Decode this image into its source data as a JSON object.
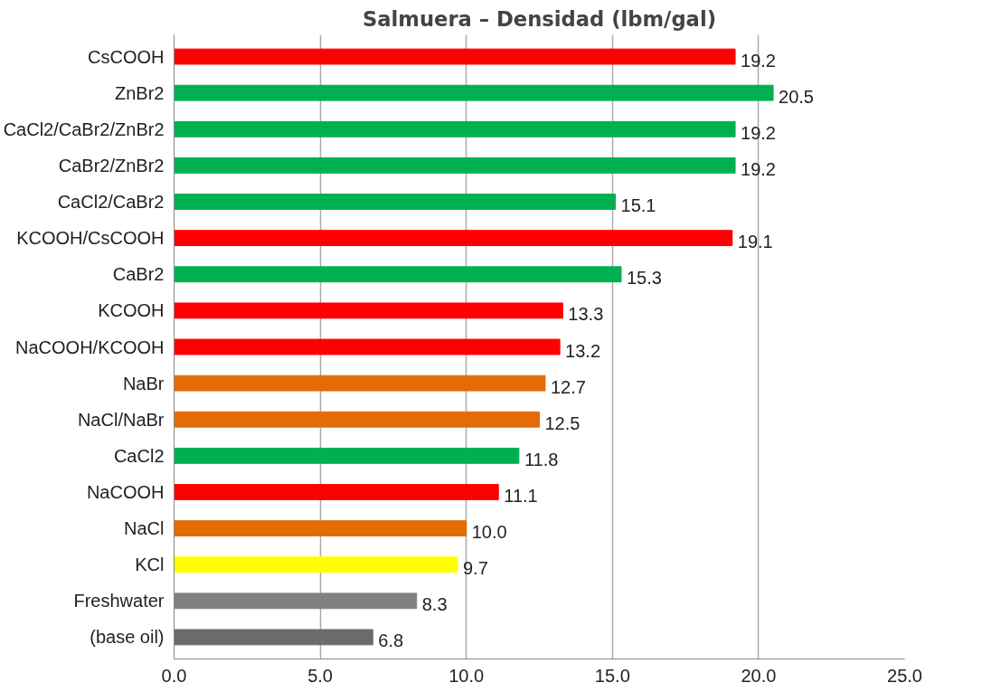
{
  "chart_data": {
    "type": "bar",
    "orientation": "horizontal",
    "title": "Salmuera – Densidad (lbm/gal)",
    "categories": [
      "CsCOOH",
      "ZnBr2",
      "CaCl2/CaBr2/ZnBr2",
      "CaBr2/ZnBr2",
      "CaCl2/CaBr2",
      "KCOOH/CsCOOH",
      "CaBr2",
      "KCOOH",
      "NaCOOH/KCOOH",
      "NaBr",
      "NaCl/NaBr",
      "CaCl2",
      "NaCOOH",
      "NaCl",
      "KCl",
      "Freshwater",
      "(base oil)"
    ],
    "values": [
      19.2,
      20.5,
      19.2,
      19.2,
      15.1,
      19.1,
      15.3,
      13.3,
      13.2,
      12.7,
      12.5,
      11.8,
      11.1,
      10.0,
      9.7,
      8.3,
      6.8
    ],
    "value_labels": [
      "19.2",
      "20.5",
      "19.2",
      "19.2",
      "15.1",
      "19.1",
      "15.3",
      "13.3",
      "13.2",
      "12.7",
      "12.5",
      "11.8",
      "11.1",
      "10.0",
      "9.7",
      "8.3",
      "6.8"
    ],
    "colors": [
      "#ff0000",
      "#00b050",
      "#00b050",
      "#00b050",
      "#00b050",
      "#ff0000",
      "#00b050",
      "#ff0000",
      "#ff0000",
      "#e36c09",
      "#e36c09",
      "#00b050",
      "#ff0000",
      "#e36c09",
      "#ffff00",
      "#808080",
      "#6b6b6b"
    ],
    "xlim": [
      0,
      25
    ],
    "xticks": [
      {
        "value": 0,
        "label": "0.0"
      },
      {
        "value": 5,
        "label": "5.0"
      },
      {
        "value": 10,
        "label": "10.0"
      },
      {
        "value": 15,
        "label": "15.0"
      },
      {
        "value": 20,
        "label": "20.0"
      },
      {
        "value": 25,
        "label": "25.0"
      }
    ],
    "grid": "x"
  }
}
